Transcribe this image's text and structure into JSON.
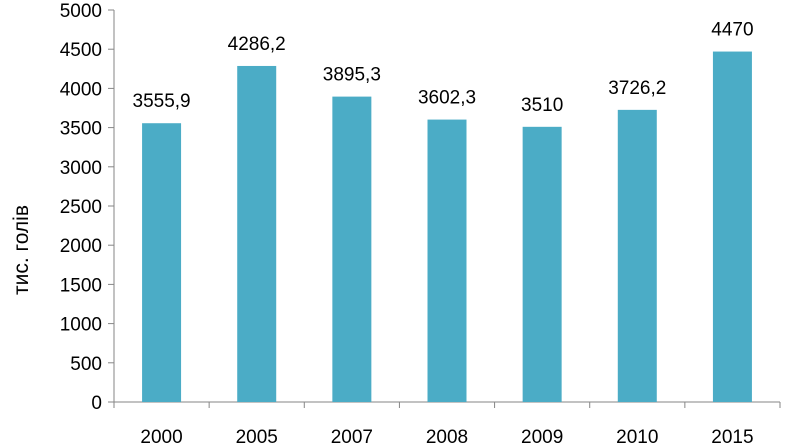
{
  "chart_data": {
    "type": "bar",
    "title": "",
    "xlabel": "",
    "ylabel": "тис. голів",
    "categories": [
      "2000",
      "2005",
      "2007",
      "2008",
      "2009",
      "2010",
      "2015"
    ],
    "values": [
      3555.9,
      4286.2,
      3895.3,
      3602.3,
      3510,
      3726.2,
      4470
    ],
    "value_labels": [
      "3555,9",
      "4286,2",
      "3895,3",
      "3602,3",
      "3510",
      "3726,2",
      "4470"
    ],
    "yticks": [
      "0",
      "500",
      "1000",
      "1500",
      "2000",
      "2500",
      "3000",
      "3500",
      "4000",
      "4500",
      "5000"
    ],
    "ylim": [
      0,
      5000
    ],
    "grid": false,
    "bar_color": "#4BACC6"
  }
}
